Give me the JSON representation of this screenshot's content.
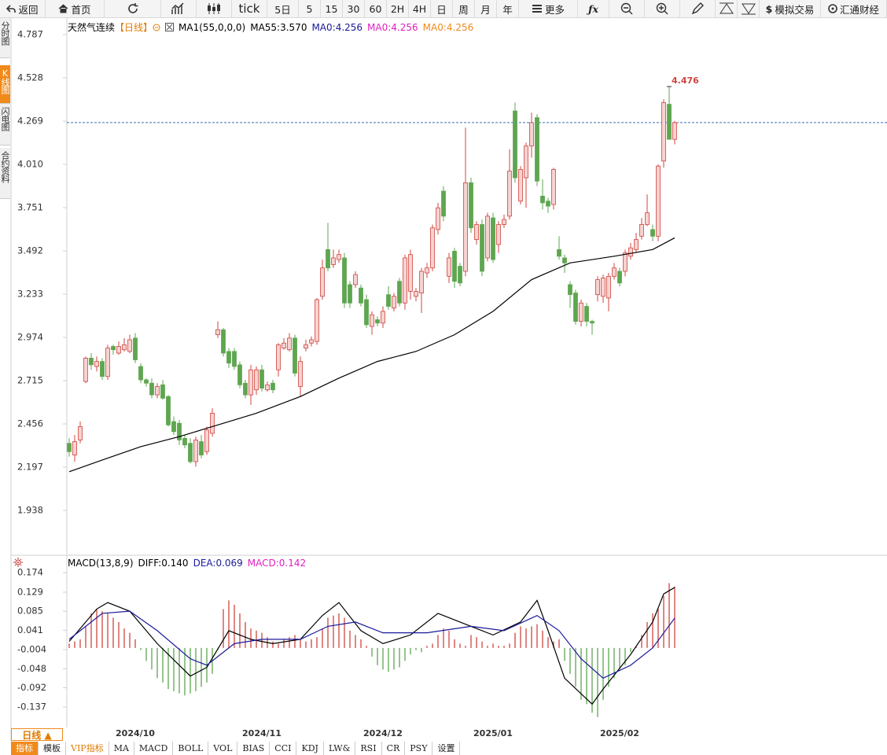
{
  "toolbar": {
    "items": [
      "返回",
      "首页",
      "tick",
      "5日",
      "5",
      "15",
      "30",
      "60",
      "2H",
      "4H",
      "日",
      "周",
      "月",
      "年",
      "更多",
      "模拟交易",
      "汇通财经"
    ]
  },
  "sidebar": {
    "tabs": [
      "分时图",
      "K线图",
      "闪电图",
      "合约资料"
    ]
  },
  "bottom_bar": {
    "period_button": "日线 ▲",
    "tabs": [
      "指标",
      "模板",
      "VIP指标",
      "MA",
      "MACD",
      "BOLL",
      "VOL",
      "BIAS",
      "CCI",
      "KDJ",
      "LW&",
      "RSI",
      "CR",
      "PSY",
      "设置"
    ]
  },
  "chart_data": [
    {
      "type": "candlestick",
      "title": "天然气连续",
      "period": "【日线】",
      "period_color": "#e07b00",
      "legend": [
        {
          "text": "MA1(55,0,0,0)",
          "color": "#000000"
        },
        {
          "text": "MA55:3.570",
          "color": "#000000"
        },
        {
          "text": "MA0:4.256",
          "color": "#1a1a9c"
        },
        {
          "text": "MA0:4.256",
          "color": "#e020c0"
        },
        {
          "text": "MA0:4.256",
          "color": "#f08a1a"
        }
      ],
      "up_color": "#d0453f",
      "up_fill": "#f6d3d1",
      "down_color": "#5ea650",
      "open": [
        2.34,
        2.27,
        2.36,
        2.71,
        2.85,
        2.8,
        2.83,
        2.74,
        2.92,
        2.88,
        2.9,
        2.89,
        2.97,
        2.8,
        2.72,
        2.7,
        2.63,
        2.69,
        2.62,
        2.47,
        2.46,
        2.37,
        2.34,
        2.23,
        2.35,
        2.29,
        2.4,
        2.99,
        3.02,
        2.89,
        2.89,
        2.81,
        2.7,
        2.63,
        2.66,
        2.78,
        2.66,
        2.7,
        2.78,
        2.91,
        2.9,
        2.97,
        2.68,
        2.91,
        2.94,
        2.95,
        3.22,
        3.5,
        3.41,
        3.44,
        3.45,
        3.29,
        3.29,
        3.27,
        3.2,
        3.04,
        3.08,
        3.06,
        3.23,
        3.15,
        3.31,
        3.18,
        3.25,
        3.22,
        3.24,
        3.36,
        3.39,
        3.62,
        3.85,
        3.34,
        3.49,
        3.4,
        3.37,
        3.9,
        3.56,
        3.65,
        3.45,
        3.69,
        3.53,
        3.65,
        3.7,
        4.33,
        3.79,
        3.93,
        4.12,
        4.29,
        3.82,
        3.79,
        3.77,
        3.5,
        3.45,
        3.29,
        3.24,
        3.07,
        3.16,
        3.07,
        3.23,
        3.22,
        3.21,
        3.34,
        3.37,
        3.37,
        3.46,
        3.5,
        3.58,
        3.65,
        3.62,
        3.58,
        4.03,
        4.37,
        4.16
      ],
      "high": [
        2.37,
        2.39,
        2.47,
        2.86,
        2.88,
        2.86,
        2.85,
        2.93,
        2.93,
        2.95,
        2.97,
        2.99,
        3.0,
        2.82,
        2.73,
        2.73,
        2.7,
        2.72,
        2.63,
        2.5,
        2.48,
        2.39,
        2.37,
        2.38,
        2.39,
        2.44,
        2.55,
        3.07,
        3.03,
        2.91,
        2.91,
        2.83,
        2.72,
        2.81,
        2.8,
        2.81,
        2.71,
        2.72,
        2.94,
        2.97,
        3.0,
        2.99,
        2.86,
        2.96,
        2.98,
        3.21,
        3.44,
        3.66,
        3.5,
        3.5,
        3.48,
        3.31,
        3.37,
        3.29,
        3.23,
        3.13,
        3.1,
        3.16,
        3.28,
        3.24,
        3.33,
        3.47,
        3.5,
        3.27,
        3.39,
        3.42,
        3.65,
        3.78,
        3.88,
        3.48,
        3.51,
        3.42,
        4.23,
        3.93,
        3.67,
        3.68,
        3.72,
        3.72,
        3.67,
        3.71,
        4.1,
        4.38,
        4.0,
        4.14,
        4.32,
        4.31,
        3.92,
        3.81,
        3.99,
        3.58,
        3.47,
        3.31,
        3.26,
        3.2,
        3.18,
        3.08,
        3.34,
        3.35,
        3.36,
        3.42,
        3.39,
        3.5,
        3.54,
        3.6,
        3.69,
        3.83,
        3.65,
        4.01,
        4.4,
        4.476,
        4.27
      ],
      "low": [
        2.26,
        2.23,
        2.34,
        2.7,
        2.78,
        2.77,
        2.72,
        2.72,
        2.87,
        2.87,
        2.89,
        2.88,
        2.82,
        2.7,
        2.68,
        2.61,
        2.61,
        2.6,
        2.44,
        2.39,
        2.33,
        2.31,
        2.22,
        2.2,
        2.25,
        2.27,
        2.38,
        2.97,
        2.86,
        2.79,
        2.78,
        2.67,
        2.61,
        2.57,
        2.63,
        2.65,
        2.65,
        2.64,
        2.74,
        2.9,
        2.89,
        2.74,
        2.62,
        2.89,
        2.92,
        2.93,
        3.2,
        3.37,
        3.39,
        3.42,
        3.15,
        3.15,
        3.27,
        3.16,
        3.03,
        2.99,
        3.04,
        3.03,
        3.14,
        3.13,
        3.16,
        3.14,
        3.2,
        3.19,
        3.12,
        3.33,
        3.37,
        3.59,
        3.67,
        3.3,
        3.27,
        3.28,
        3.34,
        3.6,
        3.53,
        3.34,
        3.43,
        3.42,
        3.48,
        3.63,
        3.68,
        3.9,
        3.77,
        3.75,
        4.05,
        3.88,
        3.74,
        3.72,
        3.74,
        3.44,
        3.36,
        3.15,
        3.05,
        3.04,
        3.04,
        2.99,
        3.19,
        3.18,
        3.13,
        3.32,
        3.28,
        3.34,
        3.44,
        3.48,
        3.56,
        3.64,
        3.55,
        3.55,
        3.99,
        4.16,
        4.13
      ],
      "close": [
        2.29,
        2.35,
        2.44,
        2.85,
        2.81,
        2.83,
        2.74,
        2.91,
        2.9,
        2.92,
        2.93,
        2.96,
        2.84,
        2.72,
        2.7,
        2.63,
        2.68,
        2.61,
        2.45,
        2.41,
        2.36,
        2.33,
        2.23,
        2.36,
        2.27,
        2.42,
        2.52,
        3.02,
        2.88,
        2.82,
        2.8,
        2.69,
        2.63,
        2.78,
        2.78,
        2.67,
        2.69,
        2.66,
        2.93,
        2.94,
        2.97,
        2.76,
        2.83,
        2.93,
        2.96,
        3.2,
        3.39,
        3.39,
        3.45,
        3.47,
        3.18,
        3.18,
        3.35,
        3.18,
        3.05,
        3.11,
        3.06,
        3.13,
        3.16,
        3.22,
        3.18,
        3.45,
        3.47,
        3.25,
        3.37,
        3.39,
        3.63,
        3.75,
        3.7,
        3.45,
        3.31,
        3.3,
        3.9,
        3.63,
        3.65,
        3.37,
        3.7,
        3.44,
        3.65,
        3.68,
        3.97,
        3.93,
        3.98,
        4.12,
        4.26,
        3.91,
        3.78,
        3.76,
        3.98,
        3.46,
        3.42,
        3.23,
        3.07,
        3.18,
        3.07,
        3.06,
        3.32,
        3.33,
        3.34,
        3.39,
        3.3,
        3.48,
        3.51,
        3.56,
        3.65,
        3.72,
        3.58,
        4.0,
        4.38,
        4.16,
        4.26
      ],
      "line": {
        "color": "#000000",
        "x": [
          0,
          6,
          13,
          20,
          27,
          34,
          42,
          49,
          56,
          63,
          70,
          77,
          84,
          91,
          99,
          106,
          110
        ],
        "values": [
          2.17,
          2.24,
          2.32,
          2.38,
          2.45,
          2.52,
          2.62,
          2.73,
          2.83,
          2.89,
          2.99,
          3.13,
          3.32,
          3.42,
          3.46,
          3.5,
          3.57
        ]
      },
      "price_line": true,
      "price_line_color": "#3f6fb5",
      "max_label": "4.476",
      "max_label_color": "#d0453f",
      "ylim": [
        1.698,
        4.853
      ],
      "yticks": [
        4.787,
        4.528,
        4.269,
        {
          "value": 4.01,
          "label": "4.010"
        },
        3.751,
        3.492,
        3.233,
        2.974,
        2.715,
        2.456,
        2.197,
        1.938
      ]
    },
    {
      "type": "macd",
      "title": "MACD(13,8,9)",
      "legend": [
        {
          "text": "DIFF:0.140",
          "color": "#000000"
        },
        {
          "text": "DEA:0.069",
          "color": "#1a1a9c"
        },
        {
          "text": "MACD:0.142",
          "color": "#e020c0"
        }
      ],
      "categories": [
        null,
        null,
        null,
        null,
        null,
        null,
        null,
        null,
        null,
        null,
        null,
        null,
        "2024/10",
        null,
        null,
        null,
        null,
        null,
        null,
        null,
        null,
        null,
        null,
        null,
        null,
        null,
        null,
        null,
        null,
        null,
        null,
        null,
        null,
        null,
        null,
        "2024/11",
        null,
        null,
        null,
        null,
        null,
        null,
        null,
        null,
        null,
        null,
        null,
        null,
        null,
        null,
        null,
        null,
        null,
        null,
        null,
        null,
        null,
        "2024/12",
        null,
        null,
        null,
        null,
        null,
        null,
        null,
        null,
        null,
        null,
        null,
        null,
        null,
        null,
        null,
        null,
        null,
        null,
        null,
        "2025/01",
        null,
        null,
        null,
        null,
        null,
        null,
        null,
        null,
        null,
        null,
        null,
        null,
        null,
        null,
        null,
        null,
        null,
        null,
        null,
        null,
        null,
        null,
        "2025/02",
        null,
        null,
        null,
        null,
        null,
        null,
        null,
        null,
        null,
        null
      ],
      "up_color": "#d0453f",
      "down_color": "#5ea650",
      "histogram": [
        0.01,
        0.015,
        0.02,
        0.05,
        0.08,
        0.09,
        0.085,
        0.08,
        0.07,
        0.06,
        0.045,
        0.035,
        0.02,
        -0.005,
        -0.03,
        -0.05,
        -0.07,
        -0.08,
        -0.095,
        -0.1,
        -0.105,
        -0.11,
        -0.105,
        -0.1,
        -0.09,
        -0.08,
        -0.06,
        -0.005,
        0.09,
        0.11,
        0.1,
        0.08,
        0.06,
        0.045,
        0.04,
        0.035,
        0.025,
        0.015,
        0.01,
        0.02,
        0.025,
        0.03,
        0.02,
        0.015,
        0.02,
        0.025,
        0.045,
        0.07,
        0.075,
        0.08,
        0.07,
        0.04,
        0.03,
        0.02,
        0.005,
        -0.02,
        -0.04,
        -0.05,
        -0.055,
        -0.05,
        -0.045,
        -0.03,
        -0.015,
        -0.005,
        -0.01,
        0.005,
        0.01,
        0.03,
        0.045,
        0.04,
        0.02,
        0.01,
        0.005,
        0.03,
        0.025,
        0.015,
        0.005,
        0.01,
        0.005,
        0.005,
        0.01,
        0.035,
        0.05,
        0.045,
        0.05,
        0.055,
        0.04,
        0.025,
        0.015,
        0.02,
        -0.03,
        -0.06,
        -0.09,
        -0.12,
        -0.13,
        -0.15,
        -0.16,
        -0.12,
        -0.09,
        -0.07,
        -0.05,
        -0.04,
        -0.01,
        0.005,
        0.03,
        0.06,
        0.08,
        0.09,
        0.12,
        0.15,
        0.142
      ],
      "series": [
        {
          "color": "#000000",
          "x": [
            0,
            5,
            7,
            11,
            16,
            22,
            25,
            29,
            33,
            37,
            42,
            46,
            49,
            53,
            57,
            62,
            67,
            73,
            77,
            82,
            85,
            87,
            90,
            95,
            97,
            102,
            106,
            108,
            110
          ],
          "values": [
            0.015,
            0.09,
            0.105,
            0.085,
            0.01,
            -0.065,
            -0.045,
            0.04,
            0.02,
            0.01,
            0.02,
            0.075,
            0.105,
            0.04,
            0.01,
            0.03,
            0.08,
            0.05,
            0.03,
            0.06,
            0.11,
            0.04,
            -0.07,
            -0.13,
            -0.095,
            -0.015,
            0.06,
            0.125,
            0.14
          ]
        },
        {
          "color": "#1a1a9c",
          "x": [
            0,
            6,
            11,
            16,
            22,
            25,
            30,
            35,
            42,
            47,
            52,
            57,
            65,
            73,
            79,
            85,
            89,
            93,
            97,
            102,
            106,
            110
          ],
          "values": [
            0.02,
            0.08,
            0.085,
            0.04,
            -0.025,
            -0.04,
            0.01,
            0.02,
            0.02,
            0.05,
            0.06,
            0.035,
            0.035,
            0.05,
            0.04,
            0.075,
            0.04,
            -0.025,
            -0.07,
            -0.04,
            0.0,
            0.069
          ]
        }
      ],
      "ylim": [
        -0.184,
        0.189
      ],
      "yticks": [
        0.174,
        0.129,
        0.085,
        0.041,
        -0.004,
        -0.048,
        -0.092,
        -0.137
      ]
    }
  ]
}
